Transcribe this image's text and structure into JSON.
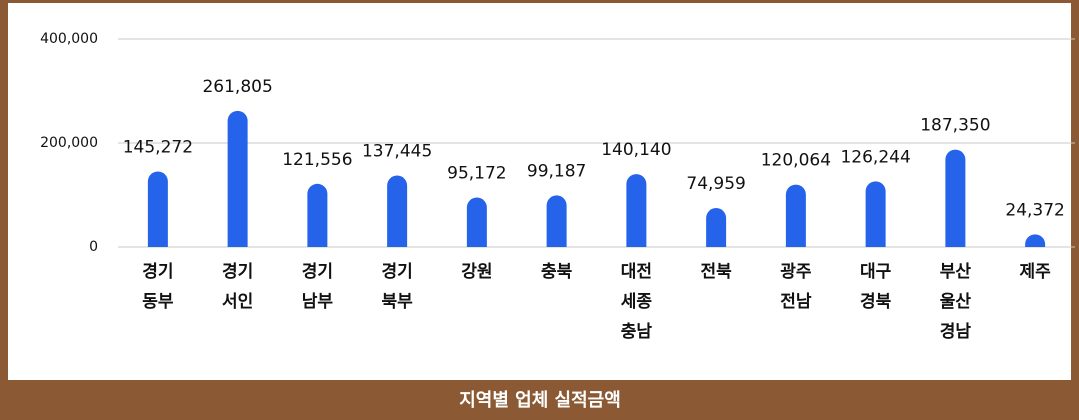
{
  "chart_data": {
    "type": "bar",
    "title": "지역별 업체 실적금액",
    "categories": [
      [
        "경기",
        "동부"
      ],
      [
        "경기",
        "서인"
      ],
      [
        "경기",
        "남부"
      ],
      [
        "경기",
        "북부"
      ],
      [
        "강원"
      ],
      [
        "충북"
      ],
      [
        "대전",
        "세종",
        "충남"
      ],
      [
        "전북"
      ],
      [
        "광주",
        "전남"
      ],
      [
        "대구",
        "경북"
      ],
      [
        "부산",
        "울산",
        "경남"
      ],
      [
        "제주"
      ]
    ],
    "values": [
      145272,
      261805,
      121556,
      137445,
      95172,
      99187,
      140140,
      74959,
      120064,
      126244,
      187350,
      24372
    ],
    "value_labels": [
      "145,272",
      "261,805",
      "121,556",
      "137,445",
      "95,172",
      "99,187",
      "140,140",
      "74,959",
      "120,064",
      "126,244",
      "187,350",
      "24,372"
    ],
    "color": "#2563eb",
    "ylim": [
      0,
      400000
    ],
    "yticks": [
      0,
      {
        "value": 200000,
        "label": "200,000"
      },
      {
        "value": 400000,
        "label": "400,000"
      }
    ],
    "grid": true
  }
}
